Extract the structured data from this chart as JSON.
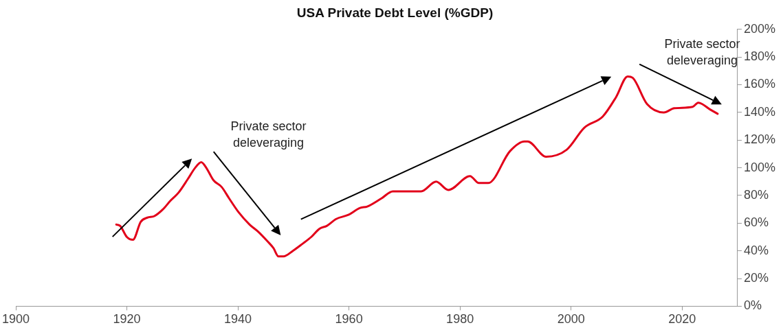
{
  "chart_data": {
    "type": "line",
    "title": "USA Private Debt Level (%GDP)",
    "series": [
      {
        "color": "#e2001a",
        "x": [
          1918.1,
          1918.8,
          1920,
          1921.1,
          1922.5,
          1923.7,
          1924.9,
          1926.5,
          1927.8,
          1929.3,
          1931,
          1932.3,
          1933.4,
          1934.3,
          1935.6,
          1937.1,
          1938.4,
          1940.1,
          1942.1,
          1943.6,
          1945.3,
          1946.4,
          1947.3,
          1948.2,
          1949.9,
          1951.6,
          1953.2,
          1954.7,
          1956,
          1957.7,
          1959.9,
          1962,
          1963.3,
          1965.9,
          1967.9,
          1970.4,
          1973,
          1975.7,
          1977.9,
          1981.8,
          1983.4,
          1985.1,
          1989,
          1991.6,
          1992.2,
          1995.5,
          1999.2,
          2002.4,
          2005.7,
          2008.1,
          2010.2,
          2011.1,
          2013.7,
          2016.7,
          2018.6,
          2021.9,
          2022.9,
          2025.1,
          2026.4
        ],
        "values": [
          59,
          58,
          50,
          48,
          61,
          64,
          65,
          70,
          76,
          82,
          92,
          100,
          104,
          100,
          91,
          86,
          78,
          68,
          59,
          54,
          47,
          42,
          36,
          36,
          40,
          45,
          50,
          56,
          58,
          63,
          66,
          71,
          72,
          78,
          83,
          83,
          83,
          90,
          84,
          94,
          89,
          89,
          112,
          119,
          119,
          108,
          113,
          129,
          137,
          151,
          166,
          165,
          146,
          140,
          143,
          144,
          147,
          142,
          139
        ]
      }
    ],
    "xlim": [
      1900,
      2030
    ],
    "xticks": [
      1900,
      1920,
      1940,
      1960,
      1980,
      2000,
      2020
    ],
    "ylim": [
      0,
      200
    ],
    "yticks": [
      {
        "value": 0,
        "label": "0%"
      },
      {
        "value": 20,
        "label": "20%"
      },
      {
        "value": 40,
        "label": "40%"
      },
      {
        "value": 60,
        "label": "60%"
      },
      {
        "value": 80,
        "label": "80%"
      },
      {
        "value": 100,
        "label": "100%"
      },
      {
        "value": 120,
        "label": "120%"
      },
      {
        "value": 140,
        "label": "140%"
      },
      {
        "value": 160,
        "label": "160%"
      },
      {
        "value": 180,
        "label": "180%"
      },
      {
        "value": 200,
        "label": "200%"
      }
    ],
    "grid": false,
    "annotations": [
      "Private sector deleveraging",
      "Private sector deleveraging"
    ]
  }
}
